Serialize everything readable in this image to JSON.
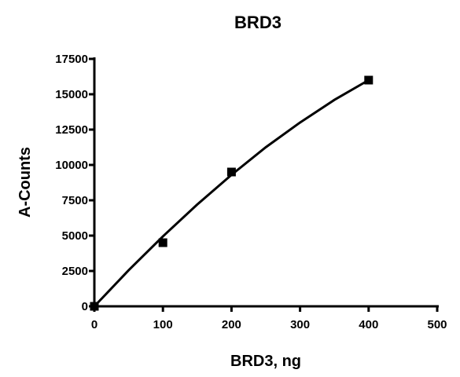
{
  "chart_data": {
    "type": "scatter",
    "title": "BRD3",
    "x_label": "BRD3, ng",
    "y_label": "A-Counts",
    "series": [
      {
        "mode": "markers",
        "marker": "square",
        "color": "#000000",
        "x": [
          0,
          100,
          200,
          400
        ],
        "values": [
          0,
          4500,
          9500,
          16000
        ]
      },
      {
        "mode": "line",
        "color": "#000000",
        "x": [
          0,
          50,
          100,
          150,
          200,
          250,
          300,
          350,
          400
        ],
        "values": [
          0,
          2550,
          4950,
          7200,
          9300,
          11250,
          13000,
          14600,
          16000
        ]
      }
    ],
    "xlim": [
      0,
      500
    ],
    "xticks": [
      0,
      100,
      200,
      300,
      400,
      500
    ],
    "ylim": [
      0,
      17500
    ],
    "yticks": [
      0,
      2500,
      5000,
      7500,
      10000,
      12500,
      15000,
      17500
    ],
    "grid": false
  }
}
